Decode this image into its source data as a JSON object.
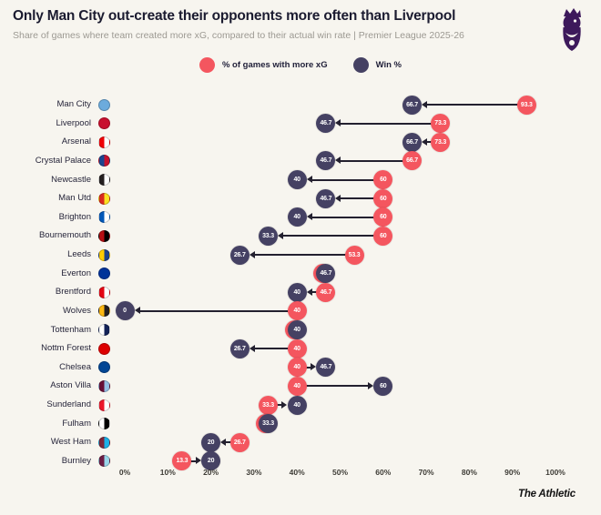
{
  "header": {
    "title": "Only Man City out-create their opponents more often than Liverpool",
    "subtitle": "Share of games where team created more xG, compared to their actual win rate | Premier League 2025-26"
  },
  "legend": {
    "xg_label": "% of games with more xG",
    "win_label": "Win %"
  },
  "footer": {
    "brand": "The Athletic"
  },
  "colors": {
    "background": "#F7F5EF",
    "xg": "#F4565F",
    "win": "#454163",
    "arrow": "#23202F",
    "pl_purple": "#3D195B"
  },
  "chart_data": {
    "type": "dumbbell",
    "title": "Only Man City out-create their opponents more often than Liverpool",
    "x_axis": {
      "min": 0,
      "max": 100,
      "ticks": [
        "0%",
        "10%",
        "20%",
        "30%",
        "40%",
        "50%",
        "60%",
        "70%",
        "80%",
        "90%",
        "100%"
      ]
    },
    "series": [
      {
        "name": "% of games with more xG",
        "key": "xg",
        "color": "#F4565F"
      },
      {
        "name": "Win %",
        "key": "win",
        "color": "#454163"
      }
    ],
    "teams": [
      {
        "name": "Man City",
        "xg": 93.3,
        "win": 66.7,
        "badge": "#6CABDD"
      },
      {
        "name": "Liverpool",
        "xg": 73.3,
        "win": 46.7,
        "badge": "#C8102E"
      },
      {
        "name": "Arsenal",
        "xg": 73.3,
        "win": 66.7,
        "badge": "#EF0107",
        "badge2": "#FFFFFF"
      },
      {
        "name": "Crystal Palace",
        "xg": 66.7,
        "win": 46.7,
        "badge": "#1B458F",
        "badge2": "#C4122E"
      },
      {
        "name": "Newcastle",
        "xg": 60,
        "win": 40,
        "badge": "#241F20",
        "badge2": "#FFFFFF"
      },
      {
        "name": "Man Utd",
        "xg": 60,
        "win": 46.7,
        "badge": "#DA291C",
        "badge2": "#FBE122"
      },
      {
        "name": "Brighton",
        "xg": 60,
        "win": 40,
        "badge": "#0057B8",
        "badge2": "#FFFFFF"
      },
      {
        "name": "Bournemouth",
        "xg": 60,
        "win": 33.3,
        "badge": "#B50E12",
        "badge2": "#000000"
      },
      {
        "name": "Leeds",
        "xg": 53.3,
        "win": 26.7,
        "badge": "#FFCD00",
        "badge2": "#1D428A"
      },
      {
        "name": "Everton",
        "xg": 46.7,
        "win": 46.7,
        "badge": "#003399"
      },
      {
        "name": "Brentford",
        "xg": 46.7,
        "win": 40,
        "badge": "#E30613",
        "badge2": "#FFFFFF"
      },
      {
        "name": "Wolves",
        "xg": 40,
        "win": 0,
        "badge": "#FDB913",
        "badge2": "#231F20"
      },
      {
        "name": "Tottenham",
        "xg": 40,
        "win": 40,
        "badge": "#FFFFFF",
        "badge2": "#132257"
      },
      {
        "name": "Nottm Forest",
        "xg": 40,
        "win": 26.7,
        "badge": "#DD0000"
      },
      {
        "name": "Chelsea",
        "xg": 40,
        "win": 46.7,
        "badge": "#034694"
      },
      {
        "name": "Aston Villa",
        "xg": 40,
        "win": 60,
        "badge": "#670E36",
        "badge2": "#95BFE5"
      },
      {
        "name": "Sunderland",
        "xg": 33.3,
        "win": 40,
        "badge": "#EB172B",
        "badge2": "#FFFFFF"
      },
      {
        "name": "Fulham",
        "xg": 33.3,
        "win": 33.3,
        "badge": "#FFFFFF",
        "badge2": "#000000"
      },
      {
        "name": "West Ham",
        "xg": 26.7,
        "win": 20,
        "badge": "#7A263A",
        "badge2": "#1BB1E7"
      },
      {
        "name": "Burnley",
        "xg": 13.3,
        "win": 20,
        "badge": "#6C1D45",
        "badge2": "#99D6EA"
      }
    ]
  }
}
